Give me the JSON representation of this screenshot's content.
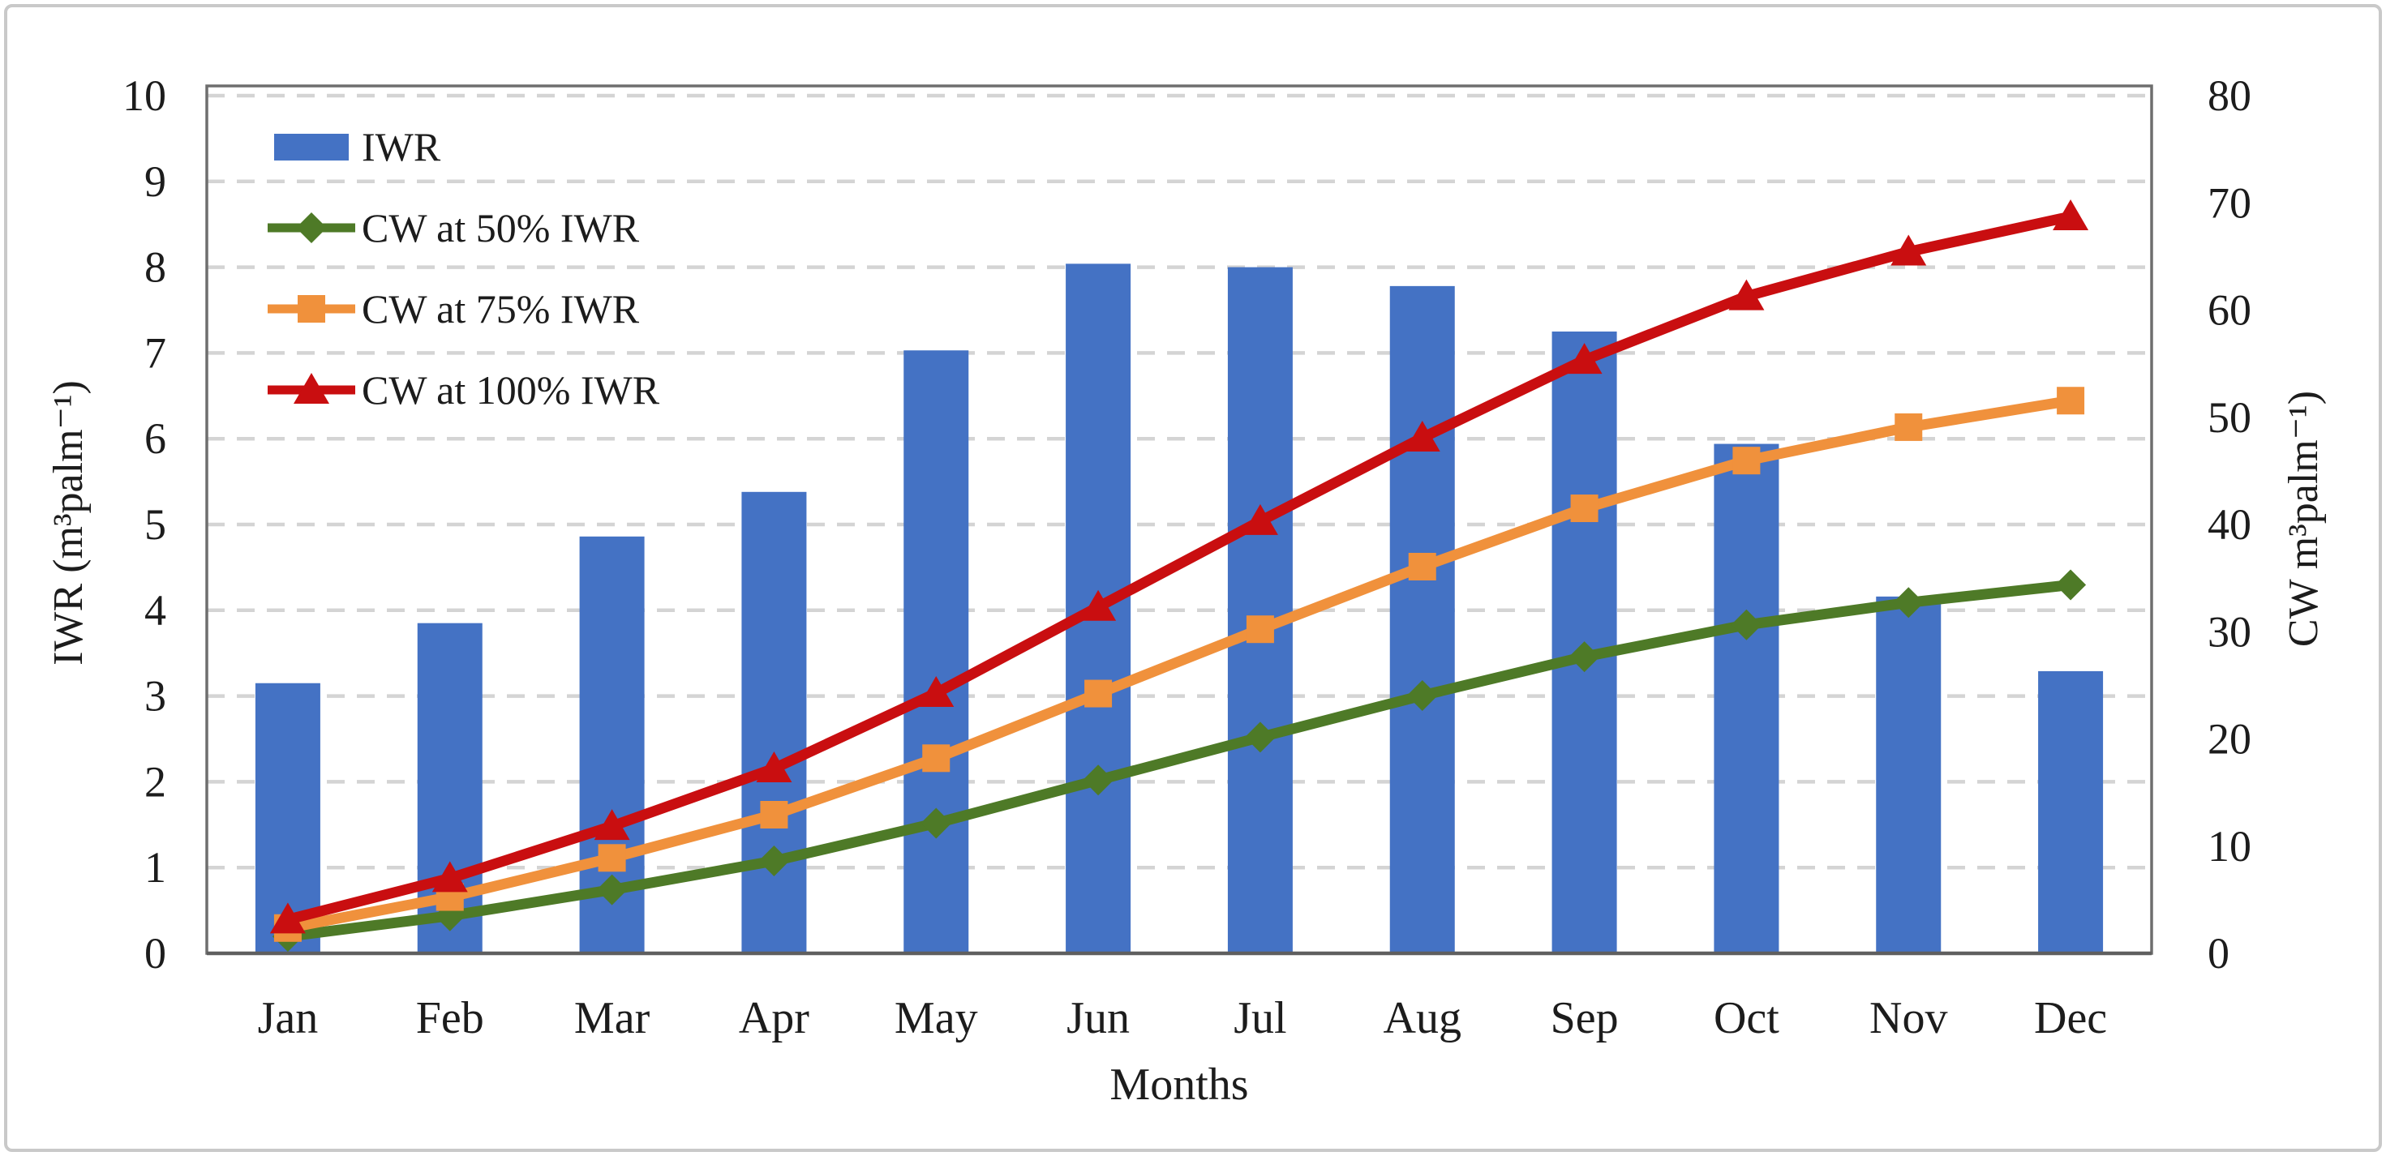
{
  "chart_data": {
    "type": "combo",
    "categories": [
      "Jan",
      "Feb",
      "Mar",
      "Apr",
      "May",
      "Jun",
      "Jul",
      "Aug",
      "Sep",
      "Oct",
      "Nov",
      "Dec"
    ],
    "x_axis": {
      "label": "Months"
    },
    "left_axis": {
      "label": "IWR (m³palm⁻¹)",
      "min": 0,
      "max": 10,
      "step": 1
    },
    "right_axis": {
      "label": "CW m³palm⁻¹)",
      "min": 0,
      "max": 80,
      "step": 10
    },
    "bar_series": {
      "name": "IWR",
      "axis": "left",
      "color": "#4472C4",
      "values": [
        3.15,
        3.85,
        4.86,
        5.38,
        7.03,
        8.04,
        8.0,
        7.78,
        7.25,
        5.94,
        4.16,
        3.29
      ]
    },
    "line_series": [
      {
        "name": "CW at 50% IWR",
        "axis": "right",
        "color": "#4E7A27",
        "marker": "diamond",
        "values": [
          1.58,
          3.5,
          5.93,
          8.62,
          12.14,
          16.16,
          20.16,
          24.05,
          27.67,
          30.64,
          32.72,
          34.37
        ]
      },
      {
        "name": "CW at 75% IWR",
        "axis": "right",
        "color": "#F0913C",
        "marker": "square",
        "values": [
          2.36,
          5.25,
          8.9,
          12.93,
          18.2,
          24.23,
          30.23,
          36.07,
          41.51,
          45.96,
          49.08,
          51.55
        ]
      },
      {
        "name": "CW at 100% IWR",
        "axis": "right",
        "color": "#C90E10",
        "marker": "triangle",
        "values": [
          3.15,
          7.0,
          11.86,
          17.24,
          24.27,
          32.31,
          40.31,
          48.09,
          55.34,
          61.28,
          65.44,
          68.73
        ]
      }
    ],
    "grid": {
      "horizontal": "dashed",
      "color": "#D4D4D4"
    },
    "frame_color": "#6E6E6E",
    "legend_position": "top-left-inside"
  }
}
